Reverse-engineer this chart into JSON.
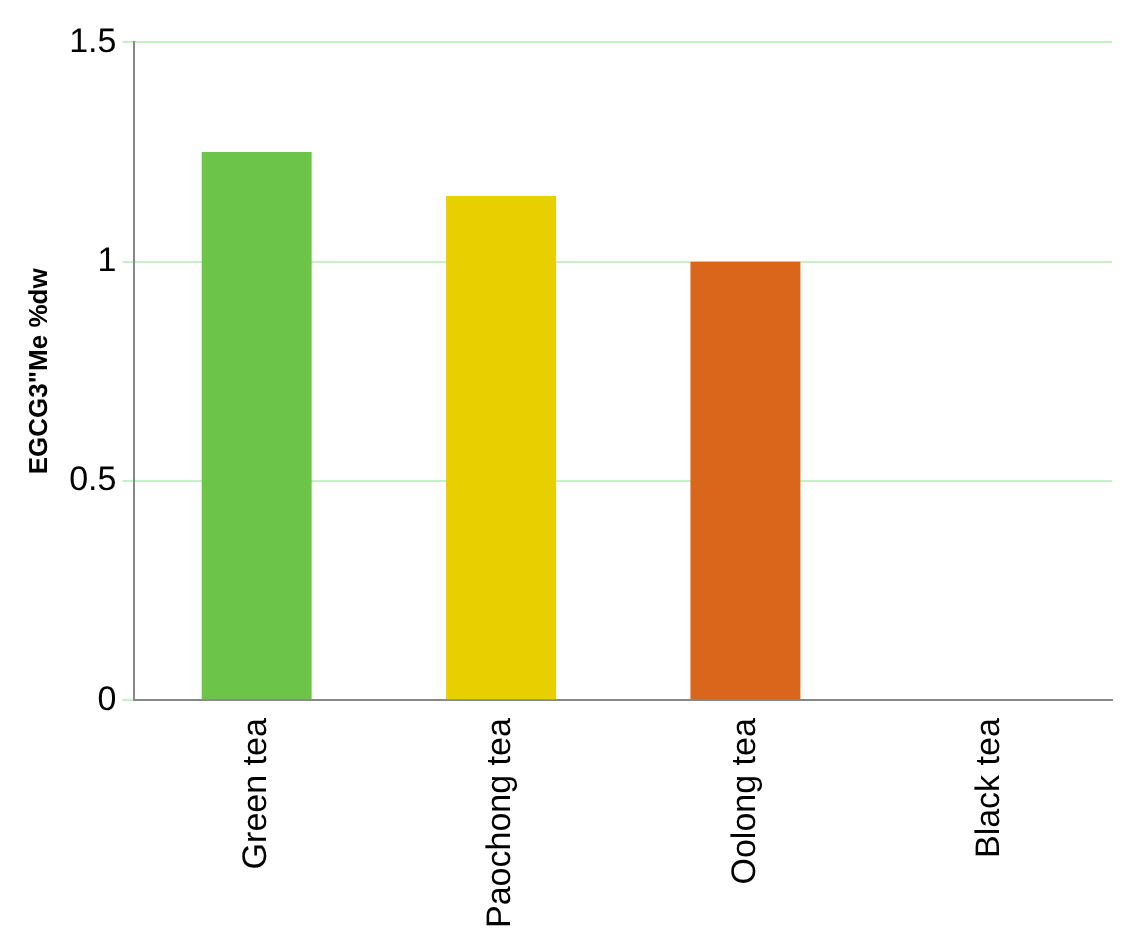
{
  "chart_data": {
    "type": "bar",
    "ylabel": "EGCG3\"Me %dw",
    "categories": [
      "Green tea",
      "Paochong tea",
      "Oolong tea",
      "Black tea"
    ],
    "values": [
      1.25,
      1.15,
      1.0,
      0
    ],
    "colors": [
      "#6cc449",
      "#e8d000",
      "#d9661a",
      "#000000"
    ],
    "ylim": [
      0,
      1.5
    ],
    "yticks": [
      0,
      0.5,
      1,
      1.5
    ],
    "grid": "y",
    "legend": false
  }
}
